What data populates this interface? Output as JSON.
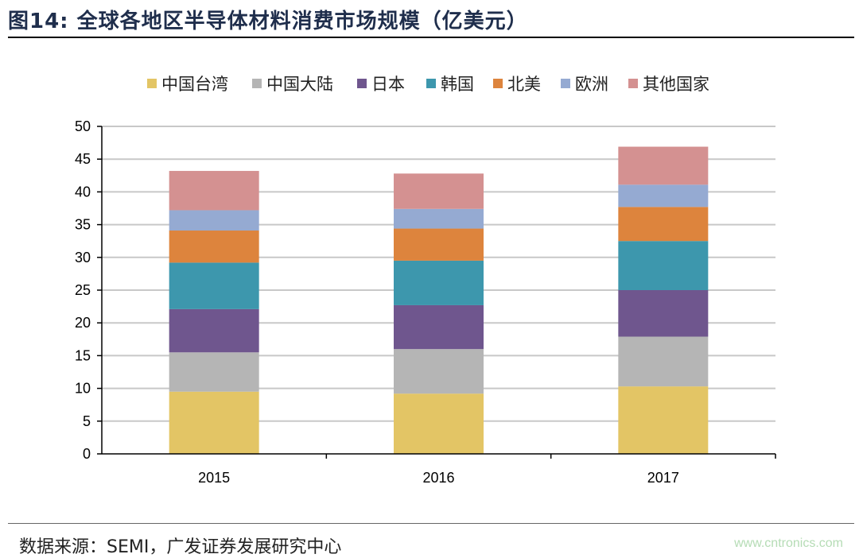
{
  "figure": {
    "title": "图14:  全球各地区半导体材料消费市场规模（亿美元）",
    "source": "数据来源：SEMI，广发证券发展研究中心",
    "watermark": "www.cntronics.com"
  },
  "chart_data": {
    "type": "bar",
    "stacked": true,
    "title": "",
    "xlabel": "",
    "ylabel": "",
    "categories": [
      "2015",
      "2016",
      "2017"
    ],
    "ylim": [
      0,
      50
    ],
    "yticks": [
      0,
      5,
      10,
      15,
      20,
      25,
      30,
      35,
      40,
      45,
      50
    ],
    "grid": true,
    "legend_position": "top",
    "series": [
      {
        "name": "中国台湾",
        "color": "#e3c565",
        "values": [
          9.5,
          9.2,
          10.3
        ]
      },
      {
        "name": "中国大陆",
        "color": "#b5b5b5",
        "values": [
          6.0,
          6.8,
          7.6
        ]
      },
      {
        "name": "日本",
        "color": "#6f568e",
        "values": [
          6.6,
          6.7,
          7.1
        ]
      },
      {
        "name": "韩国",
        "color": "#3d97ad",
        "values": [
          7.1,
          6.8,
          7.5
        ]
      },
      {
        "name": "北美",
        "color": "#dd843d",
        "values": [
          4.9,
          4.9,
          5.2
        ]
      },
      {
        "name": "欧洲",
        "color": "#95aad2",
        "values": [
          3.1,
          3.0,
          3.4
        ]
      },
      {
        "name": "其他国家",
        "color": "#d49191",
        "values": [
          6.0,
          5.4,
          5.8
        ]
      }
    ]
  }
}
